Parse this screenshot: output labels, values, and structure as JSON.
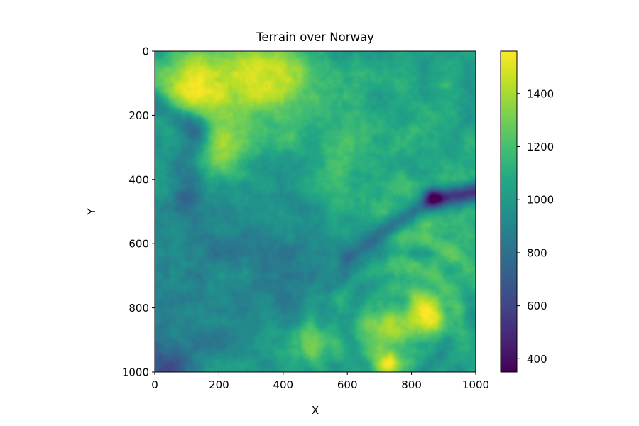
{
  "chart_data": {
    "type": "heatmap",
    "title": "Terrain over Norway",
    "xlabel": "X",
    "ylabel": "Y",
    "xlim": [
      0,
      1000
    ],
    "ylim": [
      1000,
      0
    ],
    "xticks": [
      0,
      200,
      400,
      600,
      800,
      1000
    ],
    "yticks": [
      0,
      200,
      400,
      600,
      800,
      1000
    ],
    "colormap": "viridis",
    "colorbar": {
      "range": [
        350,
        1560
      ],
      "ticks": [
        400,
        600,
        800,
        1000,
        1200,
        1400
      ]
    },
    "features": [
      {
        "kind": "high",
        "x": 100,
        "y": 100,
        "value": 1450
      },
      {
        "kind": "high",
        "x": 200,
        "y": 320,
        "value": 1400
      },
      {
        "kind": "high",
        "x": 360,
        "y": 50,
        "value": 1350
      },
      {
        "kind": "high",
        "x": 720,
        "y": 890,
        "value": 1450
      },
      {
        "kind": "high",
        "x": 850,
        "y": 820,
        "value": 1400
      },
      {
        "kind": "high",
        "x": 720,
        "y": 990,
        "value": 1500
      },
      {
        "kind": "high",
        "x": 500,
        "y": 900,
        "value": 1300
      },
      {
        "kind": "valley",
        "x": 950,
        "y": 440,
        "value": 380
      },
      {
        "kind": "valley",
        "x": 20,
        "y": 990,
        "value": 700
      }
    ]
  }
}
